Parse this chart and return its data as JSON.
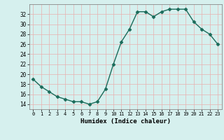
{
  "x": [
    0,
    1,
    2,
    3,
    4,
    5,
    6,
    7,
    8,
    9,
    10,
    11,
    12,
    13,
    14,
    15,
    16,
    17,
    18,
    19,
    20,
    21,
    22,
    23
  ],
  "y": [
    19,
    17.5,
    16.5,
    15.5,
    15,
    14.5,
    14.5,
    14,
    14.5,
    17,
    22,
    26.5,
    29,
    32.5,
    32.5,
    31.5,
    32.5,
    33,
    33,
    33,
    30.5,
    29,
    28,
    26
  ],
  "line_color": "#1a6b5a",
  "marker": "D",
  "marker_size": 2.5,
  "bg_color": "#d6f0ee",
  "grid_color_h": "#e8b0b0",
  "grid_color_v": "#e8b0b0",
  "xlabel": "Humidex (Indice chaleur)",
  "ylim": [
    13,
    34
  ],
  "xlim": [
    -0.5,
    23.5
  ],
  "yticks": [
    14,
    16,
    18,
    20,
    22,
    24,
    26,
    28,
    30,
    32
  ],
  "xticks": [
    0,
    1,
    2,
    3,
    4,
    5,
    6,
    7,
    8,
    9,
    10,
    11,
    12,
    13,
    14,
    15,
    16,
    17,
    18,
    19,
    20,
    21,
    22,
    23
  ]
}
